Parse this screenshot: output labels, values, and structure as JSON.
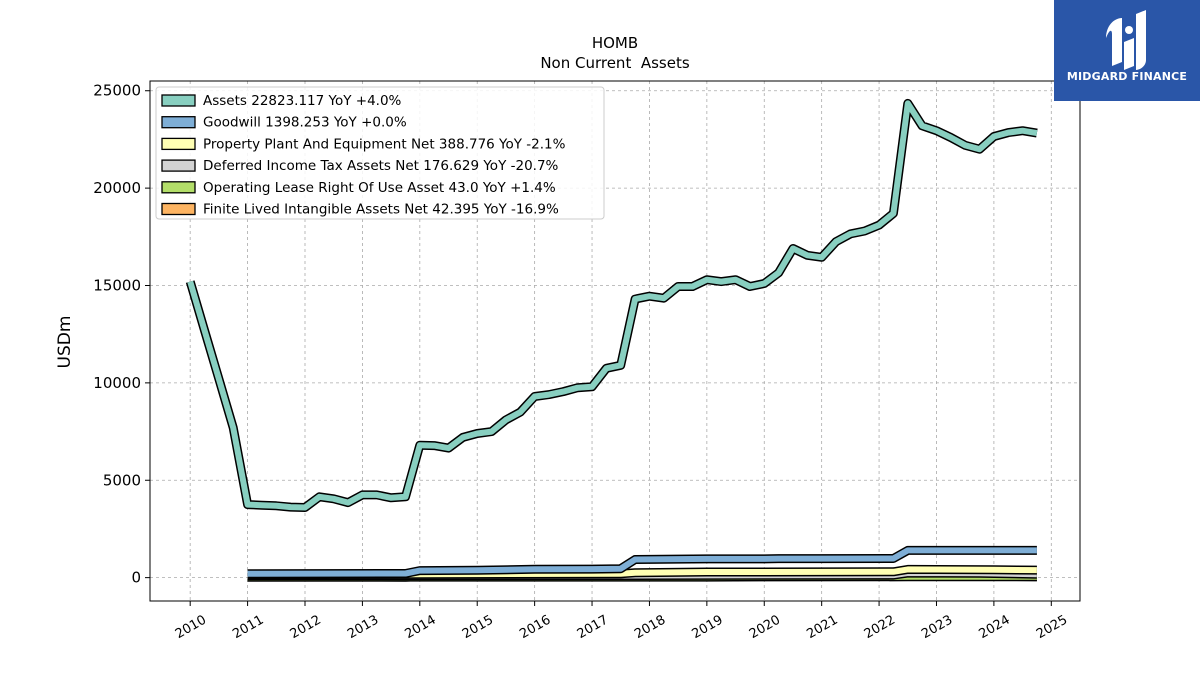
{
  "logo": {
    "text": "MIDGARD FINANCE",
    "icon": "midgard-logo-icon"
  },
  "chart_data": {
    "type": "line",
    "title": "HOMB",
    "subtitle": "Non Current  Assets",
    "ylabel": "USDm",
    "xlabel": "",
    "xlim": [
      2009.3,
      2025.5
    ],
    "ylim": [
      -1200,
      25500
    ],
    "yticks": [
      0,
      5000,
      10000,
      15000,
      20000,
      25000
    ],
    "xticks": [
      "2010",
      "2011",
      "2012",
      "2013",
      "2014",
      "2015",
      "2016",
      "2017",
      "2018",
      "2019",
      "2020",
      "2021",
      "2022",
      "2023",
      "2024",
      "2025"
    ],
    "grid": true,
    "legend_position": "top-left",
    "series": [
      {
        "name": "Assets  22823.117 YoY +4.0%",
        "color": "#88cfc0",
        "points": [
          [
            2010.0,
            15200
          ],
          [
            2010.25,
            12700
          ],
          [
            2010.5,
            10200
          ],
          [
            2010.75,
            7700
          ],
          [
            2011.0,
            3750
          ],
          [
            2011.25,
            3720
          ],
          [
            2011.5,
            3690
          ],
          [
            2011.75,
            3620
          ],
          [
            2012.0,
            3600
          ],
          [
            2012.25,
            4150
          ],
          [
            2012.5,
            4050
          ],
          [
            2012.75,
            3850
          ],
          [
            2013.0,
            4250
          ],
          [
            2013.25,
            4250
          ],
          [
            2013.5,
            4100
          ],
          [
            2013.75,
            4150
          ],
          [
            2014.0,
            6800
          ],
          [
            2014.25,
            6780
          ],
          [
            2014.5,
            6650
          ],
          [
            2014.75,
            7200
          ],
          [
            2015.0,
            7400
          ],
          [
            2015.25,
            7500
          ],
          [
            2015.5,
            8100
          ],
          [
            2015.75,
            8500
          ],
          [
            2016.0,
            9300
          ],
          [
            2016.25,
            9400
          ],
          [
            2016.5,
            9550
          ],
          [
            2016.75,
            9750
          ],
          [
            2017.0,
            9800
          ],
          [
            2017.25,
            10750
          ],
          [
            2017.5,
            10900
          ],
          [
            2017.75,
            14300
          ],
          [
            2018.0,
            14450
          ],
          [
            2018.25,
            14350
          ],
          [
            2018.5,
            14950
          ],
          [
            2018.75,
            14950
          ],
          [
            2019.0,
            15300
          ],
          [
            2019.25,
            15200
          ],
          [
            2019.5,
            15300
          ],
          [
            2019.75,
            14950
          ],
          [
            2020.0,
            15100
          ],
          [
            2020.25,
            15650
          ],
          [
            2020.5,
            16900
          ],
          [
            2020.75,
            16550
          ],
          [
            2021.0,
            16450
          ],
          [
            2021.25,
            17250
          ],
          [
            2021.5,
            17650
          ],
          [
            2021.75,
            17800
          ],
          [
            2022.0,
            18100
          ],
          [
            2022.25,
            18700
          ],
          [
            2022.5,
            24350
          ],
          [
            2022.75,
            23200
          ],
          [
            2023.0,
            22950
          ],
          [
            2023.25,
            22600
          ],
          [
            2023.5,
            22200
          ],
          [
            2023.75,
            22000
          ],
          [
            2024.0,
            22650
          ],
          [
            2024.25,
            22850
          ],
          [
            2024.5,
            22950
          ],
          [
            2024.75,
            22823
          ]
        ]
      },
      {
        "name": "Goodwill  1398.253 YoY +0.0%",
        "color": "#7eaed6",
        "points": [
          [
            2011.0,
            200
          ],
          [
            2013.75,
            210
          ],
          [
            2014.0,
            360
          ],
          [
            2015.0,
            380
          ],
          [
            2016.0,
            430
          ],
          [
            2017.0,
            440
          ],
          [
            2017.5,
            460
          ],
          [
            2017.75,
            930
          ],
          [
            2018.5,
            950
          ],
          [
            2019.0,
            960
          ],
          [
            2020.0,
            960
          ],
          [
            2020.25,
            975
          ],
          [
            2021.0,
            975
          ],
          [
            2022.25,
            980
          ],
          [
            2022.5,
            1398
          ],
          [
            2024.75,
            1398
          ]
        ]
      },
      {
        "name": "Property Plant And Equipment Net  388.776 YoY -2.1%",
        "color": "#ffffb3",
        "points": [
          [
            2011.0,
            150
          ],
          [
            2014.0,
            170
          ],
          [
            2017.5,
            200
          ],
          [
            2017.75,
            250
          ],
          [
            2019.0,
            290
          ],
          [
            2022.25,
            300
          ],
          [
            2022.5,
            420
          ],
          [
            2024.0,
            400
          ],
          [
            2024.75,
            388
          ]
        ]
      },
      {
        "name": "Deferred Income Tax Assets Net  176.629 YoY -20.7%",
        "color": "#d3d3d3",
        "points": [
          [
            2011.0,
            100
          ],
          [
            2017.75,
            110
          ],
          [
            2022.25,
            130
          ],
          [
            2022.5,
            240
          ],
          [
            2023.75,
            225
          ],
          [
            2024.75,
            176
          ]
        ]
      },
      {
        "name": "Operating Lease Right Of Use Asset  43.0 YoY +1.4%",
        "color": "#b3de69",
        "points": [
          [
            2011.0,
            20
          ],
          [
            2019.0,
            25
          ],
          [
            2020.0,
            35
          ],
          [
            2022.5,
            45
          ],
          [
            2024.75,
            43
          ]
        ]
      },
      {
        "name": "Finite Lived Intangible Assets Net  42.395 YoY -16.9%",
        "color": "#fdb462",
        "points": [
          [
            2011.0,
            30
          ],
          [
            2013.75,
            20
          ],
          [
            2014.0,
            60
          ],
          [
            2017.75,
            70
          ],
          [
            2018.0,
            110
          ],
          [
            2022.25,
            90
          ],
          [
            2022.5,
            150
          ],
          [
            2023.5,
            100
          ],
          [
            2024.75,
            42
          ]
        ]
      }
    ]
  }
}
